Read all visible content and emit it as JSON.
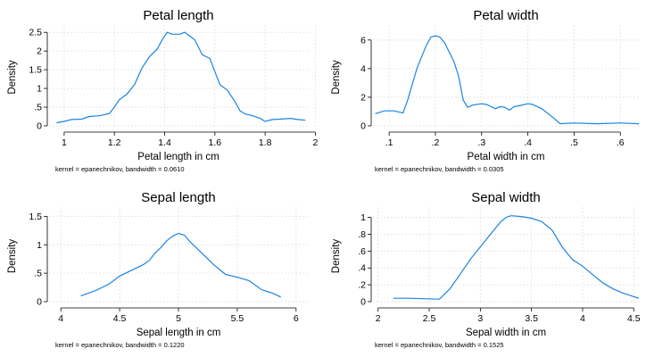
{
  "chart_data": [
    {
      "type": "line",
      "title": "Petal length",
      "xlabel": "Petal length in cm",
      "ylabel": "Density",
      "note": "kernel = epanechnikov, bandwidth = 0.0610",
      "xlim": [
        0.94,
        1.97
      ],
      "ylim": [
        0,
        2.6
      ],
      "xticks": [
        1,
        1.2,
        1.4,
        1.6,
        1.8,
        2
      ],
      "xtick_labels": [
        "1",
        "1.2",
        "1.4",
        "1.6",
        "1.8",
        "2"
      ],
      "yticks": [
        0,
        0.5,
        1,
        1.5,
        2,
        2.5
      ],
      "ytick_labels": [
        "0",
        ".5",
        "1",
        "1.5",
        "2",
        "2.5"
      ],
      "grid": true,
      "color": "#1a85e3",
      "x": [
        0.97,
        1.0,
        1.03,
        1.07,
        1.1,
        1.14,
        1.18,
        1.2,
        1.22,
        1.25,
        1.28,
        1.31,
        1.34,
        1.37,
        1.39,
        1.41,
        1.43,
        1.46,
        1.48,
        1.5,
        1.52,
        1.55,
        1.58,
        1.6,
        1.62,
        1.65,
        1.68,
        1.7,
        1.72,
        1.75,
        1.78,
        1.8,
        1.83,
        1.86,
        1.9,
        1.93,
        1.96
      ],
      "y": [
        0.08,
        0.12,
        0.17,
        0.18,
        0.25,
        0.27,
        0.33,
        0.5,
        0.7,
        0.85,
        1.1,
        1.55,
        1.85,
        2.05,
        2.3,
        2.5,
        2.45,
        2.45,
        2.5,
        2.4,
        2.3,
        1.9,
        1.8,
        1.45,
        1.1,
        0.95,
        0.65,
        0.4,
        0.32,
        0.27,
        0.2,
        0.12,
        0.17,
        0.18,
        0.2,
        0.17,
        0.15
      ]
    },
    {
      "type": "line",
      "title": "Petal width",
      "xlabel": "Petal width in cm",
      "ylabel": "Density",
      "note": "kernel = epanechnikov, bandwidth = 0.0305",
      "xlim": [
        0.065,
        0.64
      ],
      "ylim": [
        0,
        6.8
      ],
      "xticks": [
        0.1,
        0.2,
        0.3,
        0.4,
        0.5,
        0.6
      ],
      "xtick_labels": [
        ".1",
        ".2",
        ".3",
        ".4",
        ".5",
        ".6"
      ],
      "yticks": [
        0,
        2,
        4,
        6
      ],
      "ytick_labels": [
        "0",
        "2",
        "4",
        "6"
      ],
      "grid": true,
      "color": "#1a85e3",
      "x": [
        0.07,
        0.09,
        0.11,
        0.13,
        0.14,
        0.16,
        0.18,
        0.19,
        0.2,
        0.21,
        0.22,
        0.24,
        0.25,
        0.26,
        0.27,
        0.28,
        0.3,
        0.31,
        0.33,
        0.34,
        0.35,
        0.36,
        0.37,
        0.38,
        0.4,
        0.41,
        0.43,
        0.45,
        0.47,
        0.5,
        0.55,
        0.6,
        0.64
      ],
      "y": [
        0.85,
        1.05,
        1.05,
        0.9,
        1.8,
        4.0,
        5.6,
        6.2,
        6.3,
        6.2,
        5.8,
        4.5,
        3.5,
        1.8,
        1.3,
        1.45,
        1.55,
        1.5,
        1.2,
        1.35,
        1.3,
        1.1,
        1.35,
        1.4,
        1.55,
        1.5,
        1.2,
        0.7,
        0.15,
        0.2,
        0.15,
        0.2,
        0.15
      ]
    },
    {
      "type": "line",
      "title": "Sepal length",
      "xlabel": "Sepal length in cm",
      "ylabel": "Density",
      "note": "kernel = epanechnikov, bandwidth = 0.1220",
      "xlim": [
        3.9,
        6.1
      ],
      "ylim": [
        0,
        1.6
      ],
      "xticks": [
        4,
        4.5,
        5,
        5.5,
        6
      ],
      "xtick_labels": [
        "4",
        "4.5",
        "5",
        "5.5",
        "6"
      ],
      "yticks": [
        0,
        0.5,
        1,
        1.5
      ],
      "ytick_labels": [
        "0",
        ".5",
        "1",
        "1.5"
      ],
      "grid": true,
      "color": "#1a85e3",
      "x": [
        4.17,
        4.3,
        4.4,
        4.45,
        4.5,
        4.6,
        4.7,
        4.75,
        4.8,
        4.85,
        4.9,
        4.95,
        5.0,
        5.05,
        5.1,
        5.15,
        5.2,
        5.3,
        5.4,
        5.5,
        5.6,
        5.7,
        5.75,
        5.8,
        5.87
      ],
      "y": [
        0.1,
        0.2,
        0.3,
        0.37,
        0.45,
        0.55,
        0.65,
        0.72,
        0.85,
        0.95,
        1.07,
        1.15,
        1.2,
        1.17,
        1.05,
        0.95,
        0.85,
        0.65,
        0.48,
        0.43,
        0.37,
        0.22,
        0.18,
        0.15,
        0.08
      ]
    },
    {
      "type": "line",
      "title": "Sepal width",
      "xlabel": "Sepal width in cm",
      "ylabel": "Density",
      "note": "kernel = epanechnikov, bandwidth = 0.1525",
      "xlim": [
        1.95,
        4.55
      ],
      "ylim": [
        0,
        1.08
      ],
      "xticks": [
        2,
        2.5,
        3,
        3.5,
        4,
        4.5
      ],
      "xtick_labels": [
        "2",
        "2.5",
        "3",
        "3.5",
        "4",
        "4.5"
      ],
      "yticks": [
        0,
        0.2,
        0.4,
        0.6,
        0.8,
        1
      ],
      "ytick_labels": [
        "0",
        ".2",
        ".4",
        ".6",
        ".8",
        "1"
      ],
      "grid": true,
      "color": "#1a85e3",
      "x": [
        2.15,
        2.3,
        2.45,
        2.6,
        2.7,
        2.8,
        2.9,
        3.0,
        3.1,
        3.2,
        3.25,
        3.3,
        3.4,
        3.5,
        3.6,
        3.7,
        3.8,
        3.9,
        4.0,
        4.1,
        4.2,
        4.3,
        4.4,
        4.55
      ],
      "y": [
        0.04,
        0.04,
        0.035,
        0.03,
        0.15,
        0.32,
        0.5,
        0.65,
        0.8,
        0.95,
        1.0,
        1.02,
        1.01,
        0.99,
        0.95,
        0.85,
        0.65,
        0.5,
        0.42,
        0.32,
        0.22,
        0.15,
        0.1,
        0.04
      ]
    }
  ]
}
